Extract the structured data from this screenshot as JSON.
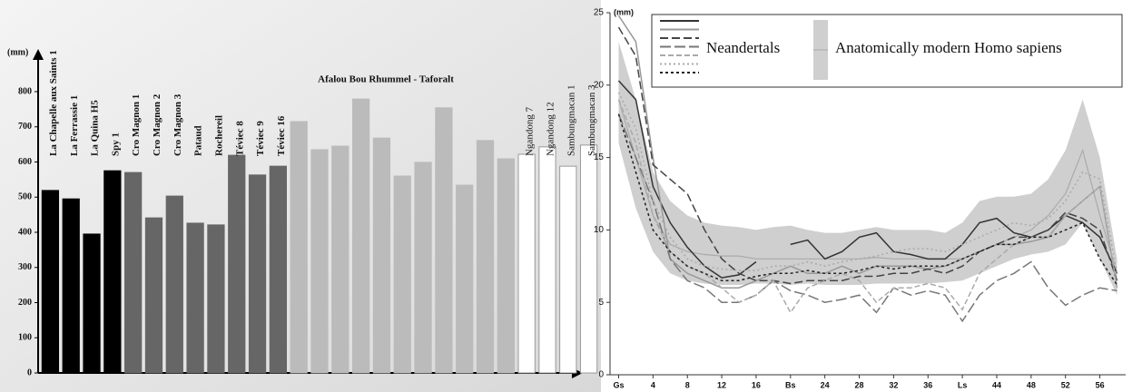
{
  "chart_data": [
    {
      "type": "bar",
      "y_label": "(mm)",
      "annotation": "Afalou Bou Rhummel - Taforalt",
      "categories": [
        "La Chapelle aux Saints 1",
        "La Ferrassie 1",
        "La Quina H5",
        "Spy 1",
        "Cro Magnon 1",
        "Cro Magnon 2",
        "Cro Magnon 3",
        "Pataud",
        "Rochereil",
        "Téviec 8",
        "Téviec 9",
        "Téviec 16",
        null,
        null,
        null,
        null,
        null,
        null,
        null,
        null,
        null,
        null,
        null,
        "Ngandong 7",
        "Ngandong 12",
        "Sambungmacan 1",
        "Sambungmacan 3"
      ],
      "values": [
        519,
        495,
        395,
        575,
        570,
        441,
        503,
        426,
        421,
        619,
        563,
        588,
        715,
        635,
        645,
        779,
        668,
        560,
        599,
        754,
        534,
        661,
        609,
        622,
        643,
        588,
        648
      ],
      "colors": [
        "#000000",
        "#000000",
        "#000000",
        "#000000",
        "#666666",
        "#666666",
        "#666666",
        "#666666",
        "#666666",
        "#666666",
        "#666666",
        "#666666",
        "#bbbbbb",
        "#bbbbbb",
        "#bbbbbb",
        "#bbbbbb",
        "#bbbbbb",
        "#bbbbbb",
        "#bbbbbb",
        "#bbbbbb",
        "#bbbbbb",
        "#bbbbbb",
        "#bbbbbb",
        "#ffffff",
        "#ffffff",
        "#ffffff",
        "#ffffff"
      ],
      "ylim": [
        0,
        800
      ],
      "yticks": [
        0,
        100,
        200,
        300,
        400,
        500,
        600,
        700,
        800
      ]
    },
    {
      "type": "line",
      "y_label": "(mm)",
      "x": [
        0,
        2,
        4,
        6,
        8,
        10,
        12,
        14,
        16,
        18,
        20,
        22,
        24,
        26,
        28,
        30,
        32,
        34,
        36,
        38,
        40,
        42,
        44,
        46,
        48,
        50,
        52,
        54,
        56,
        58
      ],
      "xlim": [
        -1,
        59
      ],
      "xticks": [
        {
          "value": 0,
          "label": "Gs"
        },
        4,
        8,
        12,
        16,
        {
          "value": 20,
          "label": "Bs"
        },
        24,
        28,
        32,
        36,
        {
          "value": 40,
          "label": "Ls"
        },
        44,
        48,
        52,
        56
      ],
      "ylim": [
        0,
        25
      ],
      "yticks": [
        0,
        5,
        10,
        15,
        20,
        25
      ],
      "modern_humans": {
        "name": "Anatomically modern Homo sapiens",
        "color": "#aaaaaa",
        "band_color": "#cfcfcf",
        "mean": [
          19,
          15,
          11,
          9,
          8.5,
          8.3,
          8.2,
          8.2,
          8,
          8,
          8,
          8,
          8,
          8,
          8,
          8.1,
          8,
          8,
          8,
          8,
          8,
          8.5,
          9,
          9.5,
          10,
          11,
          12.5,
          15.5,
          11,
          7
        ],
        "upper": [
          23,
          19,
          14,
          12,
          11,
          10.5,
          10.3,
          10.2,
          10,
          10.2,
          10.3,
          10,
          9.8,
          9.8,
          10,
          10.2,
          10,
          10,
          10,
          9.8,
          10.5,
          12,
          12.3,
          12.3,
          12.5,
          13.5,
          15.5,
          19,
          15,
          8
        ],
        "lower": [
          16,
          11.5,
          8.5,
          7,
          6.5,
          6.3,
          6.2,
          6.2,
          6.3,
          6.3,
          6.2,
          6.3,
          6.2,
          6.2,
          6.2,
          6.3,
          6.3,
          6.3,
          6.3,
          6.4,
          6.5,
          7,
          7.5,
          8,
          8.3,
          8.5,
          9,
          10.5,
          8,
          5.5
        ]
      },
      "neandertals": {
        "name": "Neandertals",
        "series": [
          {
            "color": "#333333",
            "dash": "none",
            "values": [
              20.3,
              19,
              13,
              10.5,
              8.8,
              7.5,
              6.7,
              6.9,
              7.8,
              null,
              9,
              9.3,
              8,
              8.5,
              9.5,
              9.8,
              8.5,
              8.3,
              8,
              8,
              9,
              10.5,
              10.8,
              9.8,
              9.5,
              10,
              11,
              10.5,
              9.5,
              7
            ]
          },
          {
            "color": "#999999",
            "dash": "none",
            "values": [
              24.8,
              23,
              15,
              8,
              7,
              6.5,
              6,
              6,
              6.5,
              7,
              7.5,
              7,
              7,
              7.5,
              7,
              7.5,
              7.5,
              7.5,
              7.3,
              7.5,
              8,
              8.5,
              9,
              9,
              9.2,
              9.5,
              11,
              12,
              13,
              6
            ]
          },
          {
            "color": "#444444",
            "dash": "9 4",
            "values": [
              24,
              22,
              14.5,
              13.5,
              12.5,
              10,
              8,
              7,
              6.5,
              6.5,
              6.3,
              6.5,
              6.5,
              6.5,
              6.8,
              6.8,
              7,
              7,
              7.3,
              7,
              7.5,
              8.5,
              9,
              9.5,
              9.5,
              10,
              11.2,
              10.8,
              10,
              6.5
            ]
          },
          {
            "color": "#777777",
            "dash": "12 4",
            "values": [
              18,
              15,
              12,
              8,
              6.5,
              6,
              5,
              5,
              5.5,
              6.5,
              5.8,
              5.5,
              5,
              5.2,
              5.5,
              4.3,
              6,
              5.5,
              5.8,
              5.5,
              3.7,
              5.5,
              6.5,
              7,
              7.8,
              6,
              4.8,
              5.5,
              6,
              5.8
            ]
          },
          {
            "color": "#aaaaaa",
            "dash": "6 3",
            "values": [
              19,
              16,
              11,
              8.5,
              7.5,
              7,
              6,
              5,
              5.5,
              6.5,
              4.3,
              6,
              6.5,
              7,
              6.5,
              5,
              6,
              6,
              6.3,
              6,
              4.5,
              7,
              8,
              9,
              9.5,
              9.5,
              11,
              12,
              13,
              6
            ]
          },
          {
            "color": "#aaaaaa",
            "dash": "2 3",
            "values": [
              19.5,
              17,
              12,
              9.5,
              8,
              7.5,
              7.3,
              7.2,
              7.2,
              7.5,
              7.5,
              7.8,
              7.5,
              7.8,
              8,
              8.2,
              8.5,
              8.7,
              8.7,
              8.5,
              9,
              9.5,
              10,
              10.5,
              10.3,
              10.8,
              12,
              14,
              13.5,
              7
            ]
          },
          {
            "color": "#222222",
            "dash": "3 3",
            "values": [
              18,
              14,
              10,
              8.5,
              7.5,
              7,
              6.5,
              6.5,
              6.8,
              7,
              7,
              7.2,
              7,
              7,
              7.2,
              7.5,
              7.3,
              7.5,
              7.5,
              7.5,
              8,
              8.5,
              9,
              9,
              9.5,
              9.5,
              10,
              10.5,
              8,
              6.2
            ]
          }
        ]
      }
    }
  ]
}
